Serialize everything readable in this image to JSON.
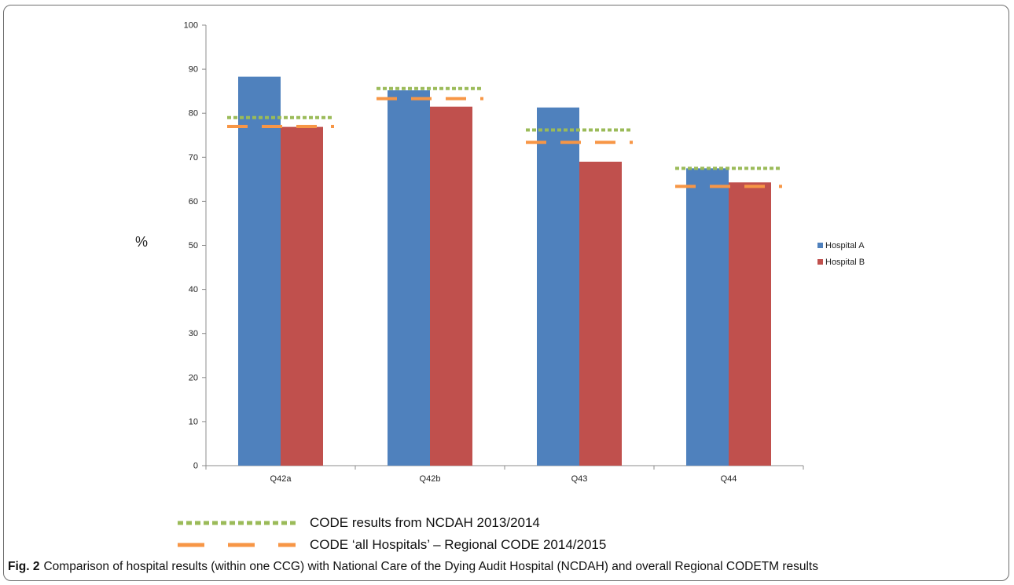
{
  "chart_data": {
    "type": "bar",
    "categories": [
      "Q42a",
      "Q42b",
      "Q43",
      "Q44"
    ],
    "series": [
      {
        "name": "Hospital A",
        "color": "#4f81bd",
        "values": [
          88.3,
          85.2,
          81.3,
          67.5
        ]
      },
      {
        "name": "Hospital B",
        "color": "#c0504d",
        "values": [
          76.9,
          81.5,
          69.0,
          64.3
        ]
      }
    ],
    "reference_lines": [
      {
        "name": "CODE results from NCDAH 2013/2014",
        "style": "dotted",
        "color": "#9bbb59",
        "values": [
          79.0,
          85.6,
          76.2,
          67.5
        ]
      },
      {
        "name": "CODE ‘all Hospitals’ – Regional CODE 2014/2015",
        "style": "dashed",
        "color": "#f79646",
        "values": [
          77.0,
          83.3,
          73.4,
          63.4
        ]
      }
    ],
    "ylabel": "%",
    "ylim": [
      0,
      100
    ],
    "yticks": [
      0,
      10,
      20,
      30,
      40,
      50,
      60,
      70,
      80,
      90,
      100
    ],
    "grid": false,
    "legend_position": "right"
  },
  "caption": {
    "prefix": "Fig. 2",
    "text": "Comparison of hospital results (within one CCG) with National Care of the Dying Audit Hospital (NCDAH) and overall Regional CODETM results"
  }
}
